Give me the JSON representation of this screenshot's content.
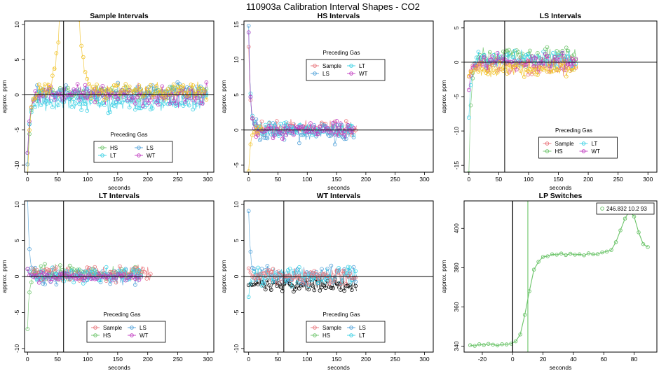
{
  "figure": {
    "title": "110903a   Calibration Interval Shapes - CO2",
    "legend_title": "Preceding Gas",
    "series_colors": {
      "Sample": "#e8737a",
      "HS": "#6cc46a",
      "LS": "#4ea0d8",
      "LT": "#38d0e4",
      "WT": "#c03ac0",
      "black": "#000000",
      "yellow": "#f0c020"
    }
  },
  "chart_data": [
    {
      "type": "scatter",
      "title": "Sample Intervals",
      "xlabel": "seconds",
      "ylabel": "approx. ppm",
      "xlim": [
        -5,
        310
      ],
      "ylim": [
        -11,
        10.5
      ],
      "xticks": [
        0,
        50,
        100,
        150,
        200,
        250,
        300
      ],
      "yticks": [
        -10,
        -5,
        0,
        5,
        10
      ],
      "hline": 0,
      "vline": 60,
      "grid": false,
      "legend": {
        "title": "Preceding Gas",
        "position": "bottom-center",
        "entries": [
          "HS",
          "LS",
          "LT",
          "WT"
        ]
      },
      "series": [
        {
          "name": "HS",
          "start": -12,
          "level": 0.3,
          "noise": 1.0,
          "len": 300,
          "tau": 4
        },
        {
          "name": "LS",
          "start": -10,
          "level": 0.2,
          "noise": 1.1,
          "len": 300,
          "tau": 4
        },
        {
          "name": "LT",
          "start": -8,
          "level": -1.0,
          "noise": 1.2,
          "len": 300,
          "tau": 4
        },
        {
          "name": "WT",
          "start": -8,
          "level": 0.0,
          "noise": 1.2,
          "len": 300,
          "tau": 4
        },
        {
          "name": "yellow",
          "start": -12,
          "level": 0.6,
          "noise": 1.0,
          "len": 300,
          "tau": 4,
          "spike": {
            "at": 70,
            "peak": 25,
            "width": 12
          }
        }
      ]
    },
    {
      "type": "scatter",
      "title": "HS Intervals",
      "xlabel": "seconds",
      "ylabel": "approx. ppm",
      "xlim": [
        -8,
        315
      ],
      "ylim": [
        -6,
        15.5
      ],
      "xticks": [
        0,
        50,
        100,
        150,
        200,
        250,
        300
      ],
      "yticks": [
        -5,
        0,
        5,
        10,
        15
      ],
      "hline": 0,
      "vline": null,
      "grid": false,
      "legend": {
        "title": "Preceding Gas",
        "position": "top-center",
        "entries": [
          "Sample",
          "LT",
          "LS",
          "WT"
        ]
      },
      "series": [
        {
          "name": "Sample",
          "start": 12,
          "level": 0.2,
          "noise": 1.0,
          "len": 185,
          "tau": 3
        },
        {
          "name": "LS",
          "start": 15,
          "level": -0.3,
          "noise": 1.2,
          "len": 180,
          "tau": 3
        },
        {
          "name": "LT",
          "start": 14,
          "level": 0.0,
          "noise": 1.0,
          "len": 180,
          "tau": 3
        },
        {
          "name": "WT",
          "start": 14,
          "level": 0.0,
          "noise": 1.0,
          "len": 180,
          "tau": 3
        },
        {
          "name": "yellow",
          "start": -6,
          "level": 0.0,
          "noise": 0.5,
          "len": 25,
          "tau": 3
        }
      ]
    },
    {
      "type": "scatter",
      "title": "LS Intervals",
      "xlabel": "seconds",
      "ylabel": "approx. ppm",
      "xlim": [
        -8,
        315
      ],
      "ylim": [
        -16,
        6
      ],
      "xticks": [
        0,
        50,
        100,
        150,
        200,
        250,
        300
      ],
      "yticks": [
        -15,
        -10,
        -5,
        0,
        5
      ],
      "hline": 0,
      "vline": 60,
      "grid": false,
      "legend": {
        "title": "Preceding Gas",
        "position": "bottom-center",
        "entries": [
          "Sample",
          "LT",
          "HS",
          "WT"
        ]
      },
      "series": [
        {
          "name": "HS",
          "start": -16,
          "level": 0.8,
          "noise": 1.3,
          "len": 180,
          "tau": 4
        },
        {
          "name": "Sample",
          "start": -2,
          "level": -0.3,
          "noise": 1.2,
          "len": 180,
          "tau": 4
        },
        {
          "name": "LT",
          "start": -8,
          "level": 0.4,
          "noise": 1.2,
          "len": 180,
          "tau": 4
        },
        {
          "name": "WT",
          "start": -4,
          "level": 0.0,
          "noise": 1.0,
          "len": 180,
          "tau": 4
        },
        {
          "name": "yellow",
          "start": -2,
          "level": -1.0,
          "noise": 1.0,
          "len": 180,
          "tau": 4
        }
      ]
    },
    {
      "type": "scatter",
      "title": "LT Intervals",
      "xlabel": "seconds",
      "ylabel": "approx. ppm",
      "xlim": [
        -5,
        310
      ],
      "ylim": [
        -10.5,
        10.5
      ],
      "xticks": [
        0,
        50,
        100,
        150,
        200,
        250,
        300
      ],
      "yticks": [
        -10,
        -5,
        0,
        5,
        10
      ],
      "hline": 0,
      "vline": 60,
      "grid": false,
      "legend": {
        "title": "Preceding Gas",
        "position": "bottom-center",
        "entries": [
          "Sample",
          "LS",
          "HS",
          "WT"
        ]
      },
      "series": [
        {
          "name": "LS",
          "start": 11,
          "level": 0.0,
          "noise": 0.9,
          "len": 190,
          "tau": 3
        },
        {
          "name": "HS",
          "start": -7,
          "level": 0.5,
          "noise": 0.9,
          "len": 190,
          "tau": 3
        },
        {
          "name": "Sample",
          "start": 1,
          "level": 0.4,
          "noise": 1.0,
          "len": 205,
          "tau": 3
        },
        {
          "name": "LT",
          "start": 1,
          "level": 0.2,
          "noise": 0.9,
          "len": 190,
          "tau": 3
        },
        {
          "name": "WT",
          "start": 1,
          "level": 0.0,
          "noise": 0.6,
          "len": 190,
          "tau": 3
        }
      ]
    },
    {
      "type": "scatter",
      "title": "WT Intervals",
      "xlabel": "seconds",
      "ylabel": "approx. ppm",
      "xlim": [
        -8,
        315
      ],
      "ylim": [
        -10.5,
        10.5
      ],
      "xticks": [
        0,
        50,
        100,
        150,
        200,
        250,
        300
      ],
      "yticks": [
        -10,
        -5,
        0,
        5,
        10
      ],
      "hline": 0,
      "vline": 60,
      "grid": false,
      "legend": {
        "title": "Preceding Gas",
        "position": "bottom-center",
        "entries": [
          "Sample",
          "LS",
          "HS",
          "LT"
        ]
      },
      "series": [
        {
          "name": "black",
          "start": -1,
          "level": -1.2,
          "noise": 0.8,
          "len": 185,
          "tau": 4
        },
        {
          "name": "LS",
          "start": 9,
          "level": 0.2,
          "noise": 1.0,
          "len": 185,
          "tau": 3
        },
        {
          "name": "LT",
          "start": -3,
          "level": 0.0,
          "noise": 1.2,
          "len": 185,
          "tau": 3
        },
        {
          "name": "Sample",
          "start": 1,
          "level": 0.0,
          "noise": 0.9,
          "len": 185,
          "tau": 3
        }
      ]
    },
    {
      "type": "line",
      "title": "LP Switches",
      "xlabel": "seconds",
      "ylabel": "approx. ppm",
      "xlim": [
        -32,
        95
      ],
      "ylim": [
        337,
        414
      ],
      "xticks": [
        -20,
        0,
        20,
        40,
        60,
        80
      ],
      "yticks": [
        340,
        360,
        380,
        400
      ],
      "vline_black": 0,
      "vline_green": 10,
      "legend": {
        "position": "top-right",
        "label": "246.832 10.2 93"
      },
      "points_x": [
        -28,
        -25,
        -22,
        -19,
        -16,
        -13,
        -10,
        -7,
        -4,
        -1,
        2,
        5,
        8,
        11,
        14,
        17,
        20,
        23,
        26,
        29,
        32,
        35,
        38,
        41,
        44,
        47,
        50,
        53,
        56,
        59,
        62,
        65,
        68,
        71,
        74,
        77,
        80,
        83,
        86,
        89
      ],
      "points_y": [
        340.5,
        340.2,
        341.0,
        340.6,
        341.2,
        340.8,
        340.4,
        341.0,
        340.9,
        341.3,
        342.5,
        346.0,
        356.0,
        368.0,
        379.0,
        383.0,
        385.5,
        385.8,
        386.8,
        386.6,
        387.2,
        386.4,
        387.1,
        386.6,
        386.8,
        386.3,
        387.3,
        386.8,
        386.9,
        387.8,
        388.2,
        389.0,
        393.0,
        399.0,
        405.0,
        409.0,
        406.0,
        398.0,
        392.0,
        390.5
      ]
    }
  ]
}
